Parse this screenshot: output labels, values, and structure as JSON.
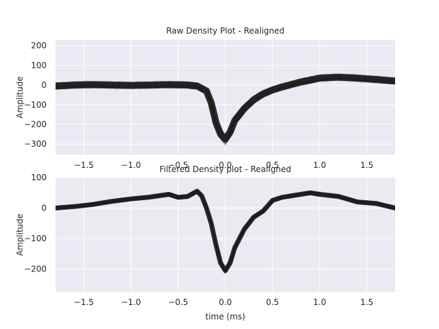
{
  "chart_data": [
    {
      "type": "line",
      "title": "Raw Density Plot - Realigned",
      "xlabel": "",
      "ylabel": "Amplitude",
      "xlim": [
        -1.8,
        1.8
      ],
      "ylim": [
        -355,
        230
      ],
      "xticks": [
        -1.5,
        -1.0,
        -0.5,
        0.0,
        0.5,
        1.0,
        1.5
      ],
      "xtick_labels": [
        "−1.5",
        "−1.0",
        "−0.5",
        "0.0",
        "0.5",
        "1.0",
        "1.5"
      ],
      "yticks": [
        200,
        100,
        0,
        -100,
        -200,
        -300
      ],
      "ytick_labels": [
        "200",
        "100",
        "0",
        "−100",
        "−200",
        "−300"
      ],
      "grid": true,
      "series": [
        {
          "x": [
            -1.8,
            -1.6,
            -1.4,
            -1.2,
            -1.0,
            -0.8,
            -0.6,
            -0.4,
            -0.3,
            -0.2,
            -0.15,
            -0.1,
            -0.05,
            0.0,
            0.05,
            0.1,
            0.2,
            0.3,
            0.4,
            0.5,
            0.6,
            0.8,
            1.0,
            1.2,
            1.4,
            1.6,
            1.8
          ],
          "y": [
            -5,
            0,
            2,
            0,
            -2,
            0,
            2,
            0,
            -5,
            -30,
            -90,
            -190,
            -250,
            -275,
            -240,
            -180,
            -120,
            -75,
            -45,
            -25,
            -10,
            15,
            35,
            40,
            35,
            28,
            20
          ]
        }
      ]
    },
    {
      "type": "line",
      "title": "Filtered Density plot - Realigned",
      "xlabel": "time (ms)",
      "ylabel": "Amplitude",
      "xlim": [
        -1.8,
        1.8
      ],
      "ylim": [
        -275,
        100
      ],
      "xticks": [
        -1.5,
        -1.0,
        -0.5,
        0.0,
        0.5,
        1.0,
        1.5
      ],
      "xtick_labels": [
        "−1.5",
        "−1.0",
        "−0.5",
        "0.0",
        "0.5",
        "1.0",
        "1.5"
      ],
      "yticks": [
        100,
        0,
        -100,
        -200
      ],
      "ytick_labels": [
        "100",
        "0",
        "−100",
        "−200"
      ],
      "grid": true,
      "series": [
        {
          "x": [
            -1.8,
            -1.6,
            -1.4,
            -1.2,
            -1.0,
            -0.8,
            -0.6,
            -0.5,
            -0.4,
            -0.3,
            -0.25,
            -0.2,
            -0.15,
            -0.1,
            -0.05,
            0.0,
            0.05,
            0.1,
            0.2,
            0.3,
            0.4,
            0.5,
            0.6,
            0.8,
            0.9,
            1.0,
            1.2,
            1.4,
            1.6,
            1.8
          ],
          "y": [
            0,
            5,
            12,
            22,
            30,
            36,
            45,
            35,
            38,
            55,
            40,
            0,
            -50,
            -120,
            -180,
            -205,
            -180,
            -130,
            -70,
            -30,
            -10,
            25,
            35,
            45,
            50,
            45,
            38,
            20,
            15,
            0
          ]
        }
      ]
    }
  ]
}
